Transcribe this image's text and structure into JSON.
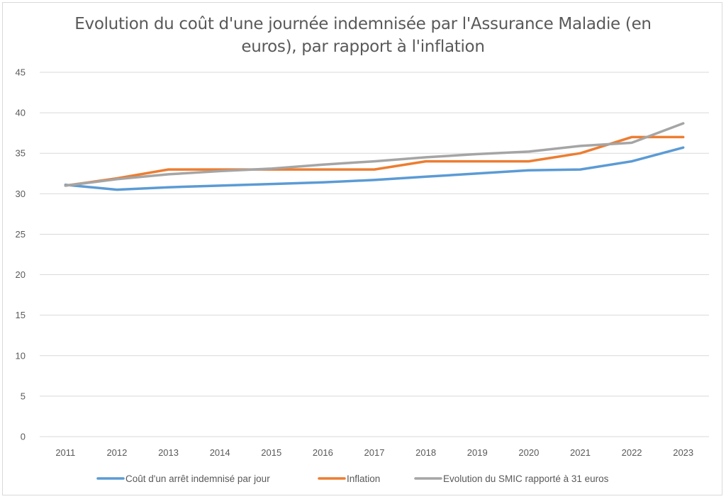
{
  "title_line1": "Evolution du coût d'une journée indemnisée par l'Assurance Maladie (en",
  "title_line2": "euros), par rapport à l'inflation",
  "colors": {
    "series1": "#5B9BD5",
    "series2": "#ED7D31",
    "series3": "#A5A5A5",
    "grid": "#d9d9d9",
    "text": "#595959"
  },
  "chart_data": {
    "type": "line",
    "title": "Evolution du coût d'une journée indemnisée par l'Assurance Maladie (en euros), par rapport à l'inflation",
    "categories": [
      "2011",
      "2012",
      "2013",
      "2014",
      "2015",
      "2016",
      "2017",
      "2018",
      "2019",
      "2020",
      "2021",
      "2022",
      "2023"
    ],
    "yticks": [
      "0",
      "5",
      "10",
      "15",
      "20",
      "25",
      "30",
      "35",
      "40",
      "45"
    ],
    "ylim": [
      0,
      45
    ],
    "grid": true,
    "legend": "bottom",
    "series": [
      {
        "name": "Coût d'un arrêt indemnisé par jour",
        "color": "#5B9BD5",
        "values": [
          31.1,
          30.5,
          30.8,
          31.0,
          31.2,
          31.4,
          31.7,
          32.1,
          32.5,
          32.9,
          33.0,
          34.0,
          35.7
        ]
      },
      {
        "name": "Inflation",
        "color": "#ED7D31",
        "values": [
          31.0,
          31.9,
          33.0,
          33.0,
          33.0,
          33.0,
          33.0,
          34.0,
          34.0,
          34.0,
          35.0,
          37.0,
          37.0
        ]
      },
      {
        "name": "Evolution du SMIC rapporté à 31 euros",
        "color": "#A5A5A5",
        "values": [
          31.0,
          31.8,
          32.4,
          32.8,
          33.1,
          33.6,
          34.0,
          34.5,
          34.9,
          35.2,
          35.9,
          36.3,
          38.7
        ]
      }
    ]
  }
}
